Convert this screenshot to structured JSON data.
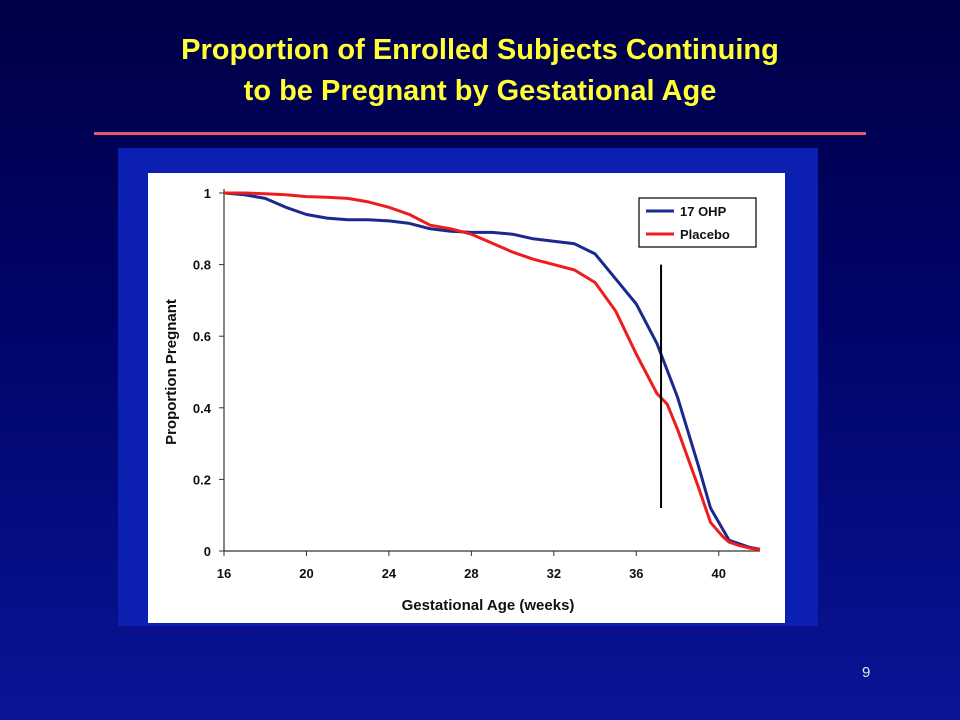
{
  "slide": {
    "title_line1": "Proportion of Enrolled Subjects Continuing",
    "title_line2": "to be Pregnant by Gestational Age",
    "page_number": "9",
    "colors": {
      "title": "#ffff33",
      "rule": "#e35a6a",
      "background": "#00046a"
    }
  },
  "chart_data": {
    "type": "line",
    "title": "",
    "xlabel": "Gestational Age (weeks)",
    "ylabel": "Proportion Pregnant",
    "xlim": [
      16,
      42
    ],
    "ylim": [
      0,
      1
    ],
    "x_ticks": [
      16,
      20,
      24,
      28,
      32,
      36,
      40
    ],
    "y_ticks": [
      0,
      0.2,
      0.4,
      0.6,
      0.8,
      1
    ],
    "y_tick_labels": [
      "0",
      "0.2",
      "0.4",
      "0.6",
      "0.8",
      "1"
    ],
    "grid": false,
    "legend_position": "top-right",
    "reference_line_x": 37.2,
    "reference_line_y": [
      0.12,
      0.8
    ],
    "series": [
      {
        "name": "17 OHP",
        "color": "#1a2a8c",
        "points": [
          [
            16,
            1
          ],
          [
            17,
            0.995
          ],
          [
            18,
            0.985
          ],
          [
            19,
            0.96
          ],
          [
            20,
            0.94
          ],
          [
            21,
            0.93
          ],
          [
            22,
            0.925
          ],
          [
            23,
            0.925
          ],
          [
            24,
            0.922
          ],
          [
            25,
            0.915
          ],
          [
            26,
            0.9
          ],
          [
            27,
            0.893
          ],
          [
            28,
            0.89
          ],
          [
            29,
            0.89
          ],
          [
            30,
            0.885
          ],
          [
            31,
            0.872
          ],
          [
            32,
            0.865
          ],
          [
            33,
            0.858
          ],
          [
            34,
            0.83
          ],
          [
            35,
            0.76
          ],
          [
            36,
            0.69
          ],
          [
            37,
            0.58
          ],
          [
            38,
            0.43
          ],
          [
            39,
            0.24
          ],
          [
            39.6,
            0.12
          ],
          [
            40.2,
            0.06
          ],
          [
            40.5,
            0.03
          ],
          [
            41,
            0.02
          ],
          [
            41.5,
            0.01
          ],
          [
            42,
            0.005
          ]
        ]
      },
      {
        "name": "Placebo",
        "color": "#ee1c1c",
        "points": [
          [
            16,
            1
          ],
          [
            17,
            1
          ],
          [
            18,
            0.998
          ],
          [
            19,
            0.995
          ],
          [
            20,
            0.99
          ],
          [
            21,
            0.988
          ],
          [
            22,
            0.985
          ],
          [
            23,
            0.975
          ],
          [
            24,
            0.96
          ],
          [
            25,
            0.94
          ],
          [
            26,
            0.91
          ],
          [
            27,
            0.9
          ],
          [
            28,
            0.885
          ],
          [
            29,
            0.86
          ],
          [
            30,
            0.835
          ],
          [
            31,
            0.815
          ],
          [
            32,
            0.8
          ],
          [
            33,
            0.785
          ],
          [
            34,
            0.75
          ],
          [
            35,
            0.67
          ],
          [
            36,
            0.55
          ],
          [
            37,
            0.44
          ],
          [
            37.5,
            0.41
          ],
          [
            38,
            0.34
          ],
          [
            39,
            0.18
          ],
          [
            39.6,
            0.08
          ],
          [
            40.2,
            0.04
          ],
          [
            40.5,
            0.025
          ],
          [
            41,
            0.015
          ],
          [
            41.5,
            0.008
          ],
          [
            42,
            0.004
          ]
        ]
      }
    ]
  }
}
